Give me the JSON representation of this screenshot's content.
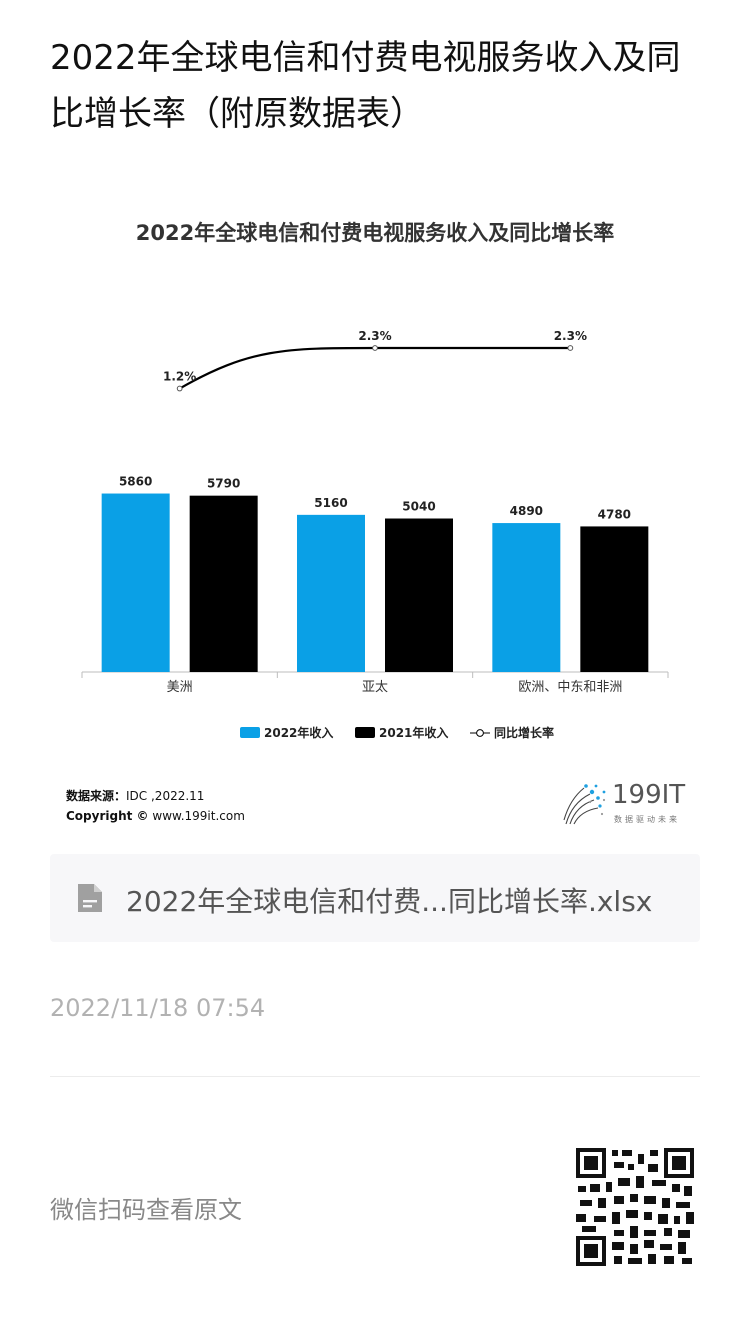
{
  "article": {
    "title": "2022年全球电信和付费电视服务收入及同比增长率（附原数据表）"
  },
  "chart_data": {
    "type": "bar",
    "title": "2022年全球电信和付费电视服务收入及同比增长率",
    "categories": [
      "美洲",
      "亚太",
      "欧洲、中东和非洲"
    ],
    "series": [
      {
        "name": "2022年收入",
        "type": "bar",
        "color": "#0aa0e6",
        "values": [
          5860,
          5160,
          4890
        ]
      },
      {
        "name": "2021年收入",
        "type": "bar",
        "color": "#000000",
        "values": [
          5790,
          5040,
          4780
        ]
      },
      {
        "name": "同比增长率",
        "type": "line",
        "color": "#000000",
        "values": [
          1.2,
          2.3,
          2.3
        ],
        "labels": [
          "1.2%",
          "2.3%",
          "2.3%"
        ]
      }
    ],
    "bar_labels": [
      [
        "5860",
        "5160",
        "4890"
      ],
      [
        "5790",
        "5040",
        "4780"
      ]
    ],
    "ylim": [
      0,
      6500
    ],
    "line_ylim": [
      0,
      2.3
    ],
    "legend_position": "bottom-center",
    "grid": false
  },
  "source": {
    "label": "数据来源：",
    "value": "IDC ,2022.11",
    "copyright_label": "Copyright ©",
    "copyright_value": "www.199it.com"
  },
  "brand": {
    "name": "199IT",
    "slogan": "数据驱动未来"
  },
  "attachment": {
    "file_name": "2022年全球电信和付费...同比增长率.xlsx",
    "icon": "file-icon"
  },
  "meta": {
    "timestamp": "2022/11/18 07:54",
    "qr_hint": "微信扫码查看原文"
  }
}
